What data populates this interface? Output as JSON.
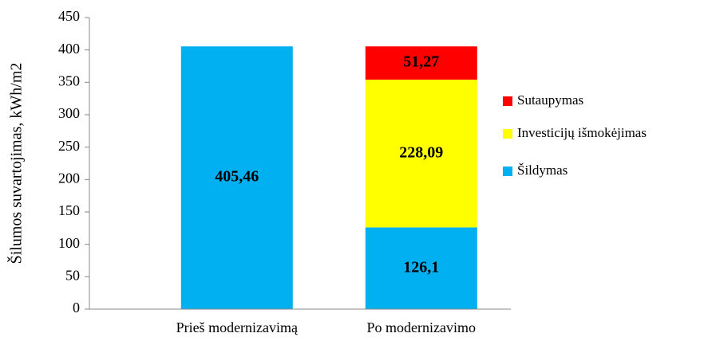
{
  "chart_data": {
    "type": "stacked_bar",
    "y_label": "Šilumos suvartojimas, kWh/m2",
    "categories": [
      "Prieš modernizavimą",
      "Po modernizavimo"
    ],
    "series": [
      {
        "name": "Šildymas",
        "color": "#00b0f0",
        "values": [
          405.46,
          126.1
        ],
        "value_labels": [
          "405,46",
          "126,1"
        ]
      },
      {
        "name": "Investicijų išmokėjimas",
        "color": "#ffff00",
        "values": [
          null,
          228.09
        ],
        "value_labels": [
          null,
          "228,09"
        ]
      },
      {
        "name": "Sutaupymas",
        "color": "#ff0000",
        "values": [
          null,
          51.27
        ],
        "value_labels": [
          null,
          "51,27"
        ]
      }
    ],
    "ylim": [
      0,
      450
    ],
    "yticks": [
      0,
      50,
      100,
      150,
      200,
      250,
      300,
      350,
      400,
      450
    ],
    "legend": "right",
    "grid": false
  }
}
